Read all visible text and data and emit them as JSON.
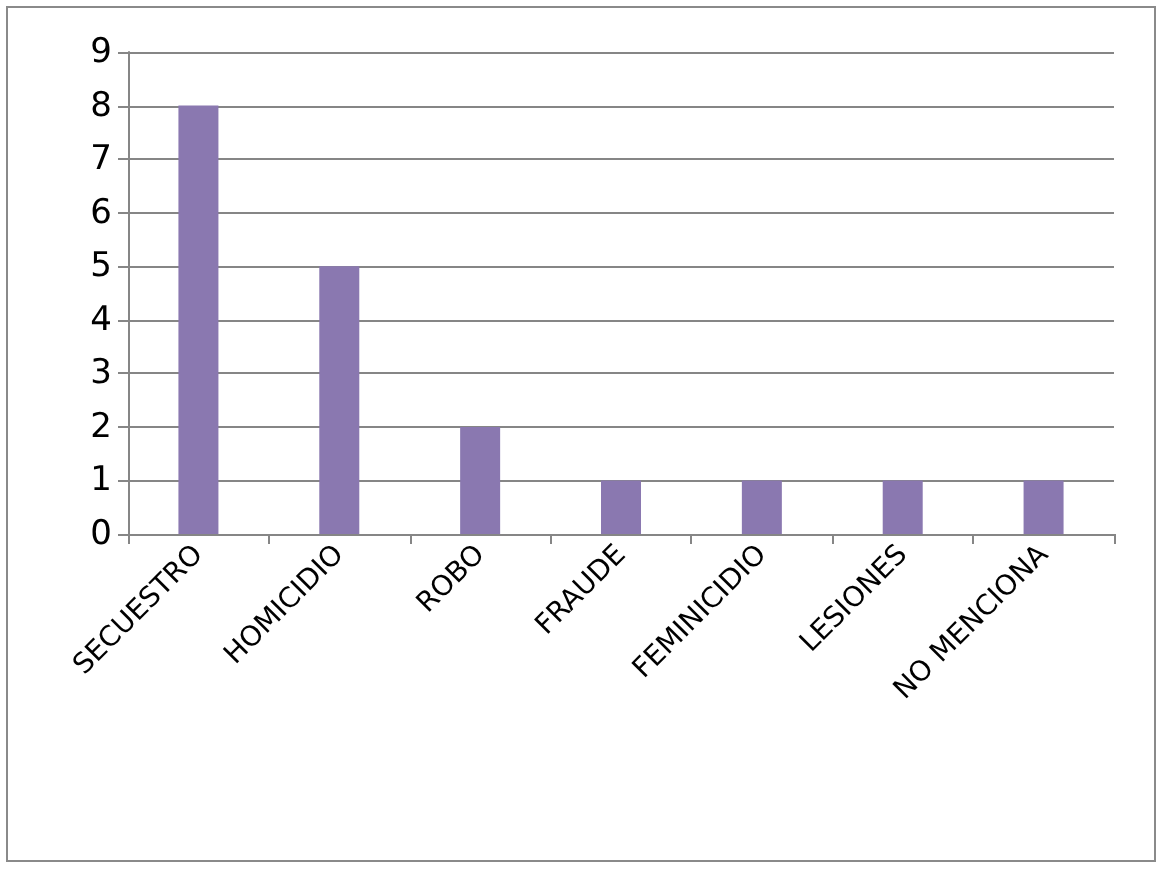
{
  "chart_data": {
    "type": "bar",
    "categories": [
      "SECUESTRO",
      "HOMICIDIO",
      "ROBO",
      "FRAUDE",
      "FEMINICIDIO",
      "LESIONES",
      "NO MENCIONA"
    ],
    "values": [
      8,
      5,
      2,
      1,
      1,
      1,
      1
    ],
    "color": "#8a78b0",
    "ylim": [
      0,
      9
    ],
    "yticks": [
      0,
      1,
      2,
      3,
      4,
      5,
      6,
      7,
      8,
      9
    ],
    "grid": "y"
  }
}
